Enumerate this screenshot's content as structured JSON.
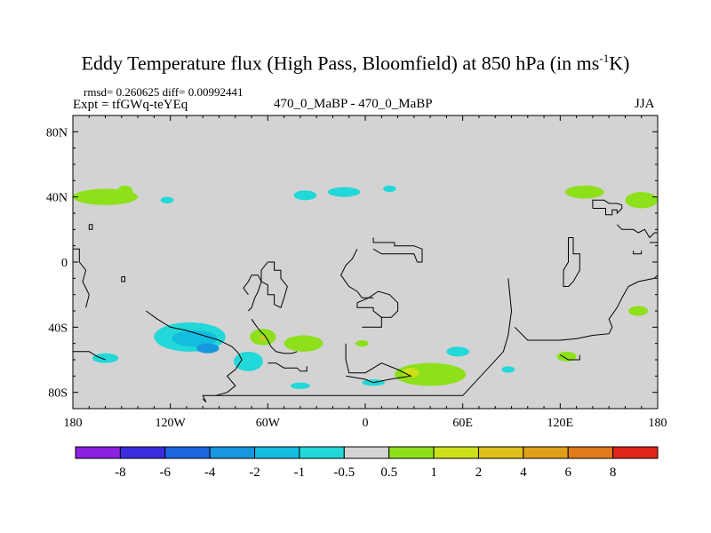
{
  "title_main": "Eddy Temperature flux (High Pass, Bloomfield) at 850 hPa (in ms",
  "title_sup": "-1",
  "title_end": "K)",
  "stats_text": "rmsd= 0.260625  diff= 0.00992441",
  "expt_text": "Expt = tfGWq-teYEq",
  "center_label": "470_0_MaBP - 470_0_MaBP",
  "season_label": "JJA",
  "colors": {
    "background": "#d3d3d3",
    "coastline": "#000000",
    "neg_levels": [
      "#8d1fe0",
      "#3a2be0",
      "#1c66e0",
      "#1996e0",
      "#12bde0",
      "#22d8d8"
    ],
    "pos_levels": [
      "#8ee01a",
      "#cce01a",
      "#e0c01a",
      "#e0a01a",
      "#e07a1a",
      "#e04a1a",
      "#e0241a"
    ]
  },
  "chart_data": {
    "type": "heatmap",
    "variable": "Eddy Temperature flux difference",
    "level_hPa": 850,
    "units": "ms-1K",
    "xaxis": {
      "range": [
        -180,
        180
      ],
      "ticks": [
        -180,
        -120,
        -60,
        0,
        60,
        120,
        180
      ],
      "tick_labels": [
        "180",
        "120W",
        "60W",
        "0",
        "60E",
        "120E",
        "180"
      ]
    },
    "yaxis": {
      "range": [
        -90,
        90
      ],
      "ticks": [
        80,
        40,
        0,
        -40,
        -80
      ],
      "tick_labels": [
        "80N",
        "40N",
        "0",
        "40S",
        "80S"
      ]
    },
    "colorbar": {
      "levels": [
        -8,
        -6,
        -4,
        -2,
        -1,
        -0.5,
        0.5,
        1,
        2,
        4,
        6,
        8
      ],
      "labels": [
        "-8",
        "-6",
        "-4",
        "-2",
        "-1",
        "-0.5",
        "0.5",
        "1",
        "2",
        "4",
        "6",
        "8"
      ],
      "colors": [
        "#8d1fe0",
        "#3a2be0",
        "#1c66e0",
        "#1996e0",
        "#12bde0",
        "#22d8d8",
        "#d3d3d3",
        "#8ee01a",
        "#cce01a",
        "#e0c01a",
        "#e0a01a",
        "#e07a1a",
        "#e0241a"
      ]
    },
    "regions": [
      {
        "kind": "pos",
        "level": 1,
        "lon": -160,
        "lat": 40,
        "rlon": 20,
        "rlat": 5
      },
      {
        "kind": "pos",
        "level": 1,
        "lon": -148,
        "lat": 43,
        "rlon": 5,
        "rlat": 4
      },
      {
        "kind": "neg",
        "level": -0.5,
        "lon": -122,
        "lat": 38,
        "rlon": 4,
        "rlat": 2
      },
      {
        "kind": "neg",
        "level": -0.5,
        "lon": -37,
        "lat": 41,
        "rlon": 7,
        "rlat": 3
      },
      {
        "kind": "neg",
        "level": -0.5,
        "lon": -13,
        "lat": 43,
        "rlon": 10,
        "rlat": 3
      },
      {
        "kind": "neg",
        "level": -0.5,
        "lon": 15,
        "lat": 45,
        "rlon": 4,
        "rlat": 2
      },
      {
        "kind": "pos",
        "level": 1,
        "lon": 135,
        "lat": 43,
        "rlon": 12,
        "rlat": 4
      },
      {
        "kind": "pos",
        "level": 1,
        "lon": 170,
        "lat": 38,
        "rlon": 10,
        "rlat": 5
      },
      {
        "kind": "pos",
        "level": 1,
        "lon": 168,
        "lat": -30,
        "rlon": 6,
        "rlat": 3
      },
      {
        "kind": "neg",
        "level": -0.5,
        "lon": -108,
        "lat": -46,
        "rlon": 22,
        "rlat": 9
      },
      {
        "kind": "neg",
        "level": -1,
        "lon": -105,
        "lat": -47,
        "rlon": 14,
        "rlat": 5
      },
      {
        "kind": "neg",
        "level": -2,
        "lon": -97,
        "lat": -53,
        "rlon": 7,
        "rlat": 3
      },
      {
        "kind": "neg",
        "level": -0.5,
        "lon": -72,
        "lat": -61,
        "rlon": 9,
        "rlat": 6
      },
      {
        "kind": "pos",
        "level": 1,
        "lon": -63,
        "lat": -46,
        "rlon": 8,
        "rlat": 5
      },
      {
        "kind": "pos",
        "level": 1,
        "lon": -38,
        "lat": -50,
        "rlon": 12,
        "rlat": 5
      },
      {
        "kind": "pos",
        "level": 4,
        "lon": -63,
        "lat": -47,
        "rlon": 1.5,
        "rlat": 1.5
      },
      {
        "kind": "neg",
        "level": -0.5,
        "lon": -160,
        "lat": -59,
        "rlon": 8,
        "rlat": 3
      },
      {
        "kind": "neg",
        "level": -0.5,
        "lon": -40,
        "lat": -76,
        "rlon": 6,
        "rlat": 2
      },
      {
        "kind": "pos",
        "level": 1,
        "lon": 40,
        "lat": -69,
        "rlon": 22,
        "rlat": 7
      },
      {
        "kind": "pos",
        "level": 2,
        "lon": 28,
        "lat": -68,
        "rlon": 5,
        "rlat": 3
      },
      {
        "kind": "neg",
        "level": -0.5,
        "lon": 5,
        "lat": -74,
        "rlon": 7,
        "rlat": 2
      },
      {
        "kind": "neg",
        "level": -0.5,
        "lon": 57,
        "lat": -55,
        "rlon": 7,
        "rlat": 3
      },
      {
        "kind": "pos",
        "level": 1,
        "lon": -2,
        "lat": -50,
        "rlon": 4,
        "rlat": 2
      },
      {
        "kind": "pos",
        "level": 1,
        "lon": 124,
        "lat": -58,
        "rlon": 6,
        "rlat": 3
      },
      {
        "kind": "neg",
        "level": -0.5,
        "lon": 88,
        "lat": -66,
        "rlon": 4,
        "rlat": 2
      }
    ]
  }
}
